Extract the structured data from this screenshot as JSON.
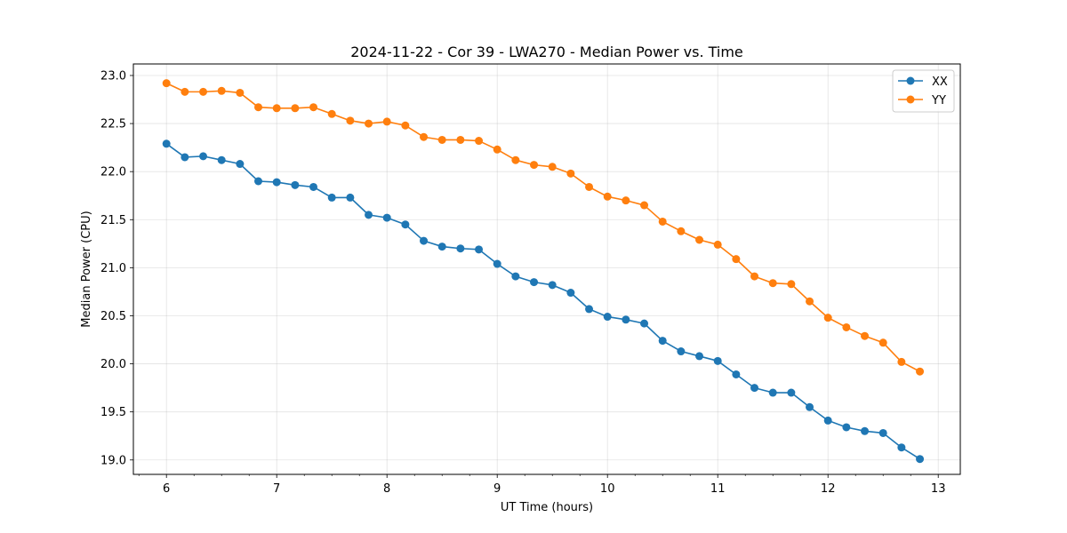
{
  "chart_data": {
    "type": "line",
    "title": "2024-11-22 - Cor 39 - LWA270 - Median Power vs. Time",
    "xlabel": "UT Time (hours)",
    "ylabel": "Median Power (CPU)",
    "xlim": [
      5.7,
      13.2
    ],
    "ylim": [
      18.85,
      23.12
    ],
    "grid": true,
    "legend_position": "top-right",
    "x_ticks": [
      6,
      7,
      8,
      9,
      10,
      11,
      12,
      13
    ],
    "x_tick_labels": [
      "6",
      "7",
      "8",
      "9",
      "10",
      "11",
      "12",
      "13"
    ],
    "x_minor_tick_step": 0.25,
    "y_ticks": [
      19.0,
      19.5,
      20.0,
      20.5,
      21.0,
      21.5,
      22.0,
      22.5,
      23.0
    ],
    "y_tick_labels": [
      "19.0",
      "19.5",
      "20.0",
      "20.5",
      "21.0",
      "21.5",
      "22.0",
      "22.5",
      "23.0"
    ],
    "x": [
      6.0,
      6.1667,
      6.3333,
      6.5,
      6.6667,
      6.8333,
      7.0,
      7.1667,
      7.3333,
      7.5,
      7.6667,
      7.8333,
      8.0,
      8.1667,
      8.3333,
      8.5,
      8.6667,
      8.8333,
      9.0,
      9.1667,
      9.3333,
      9.5,
      9.6667,
      9.8333,
      10.0,
      10.1667,
      10.3333,
      10.5,
      10.6667,
      10.8333,
      11.0,
      11.1667,
      11.3333,
      11.5,
      11.6667,
      11.8333,
      12.0,
      12.1667,
      12.3333,
      12.5,
      12.6667,
      12.8333
    ],
    "series": [
      {
        "name": "XX",
        "color": "#1f77b4",
        "values": [
          22.29,
          22.15,
          22.16,
          22.12,
          22.08,
          21.9,
          21.89,
          21.86,
          21.84,
          21.73,
          21.73,
          21.55,
          21.52,
          21.45,
          21.28,
          21.22,
          21.2,
          21.19,
          21.04,
          20.91,
          20.85,
          20.82,
          20.74,
          20.57,
          20.49,
          20.46,
          20.42,
          20.24,
          20.13,
          20.08,
          20.03,
          19.89,
          19.75,
          19.7,
          19.7,
          19.55,
          19.41,
          19.34,
          19.3,
          19.28,
          19.13,
          19.01
        ]
      },
      {
        "name": "YY",
        "color": "#ff7f0e",
        "values": [
          22.92,
          22.83,
          22.83,
          22.84,
          22.82,
          22.67,
          22.66,
          22.66,
          22.67,
          22.6,
          22.53,
          22.5,
          22.52,
          22.48,
          22.36,
          22.33,
          22.33,
          22.32,
          22.23,
          22.12,
          22.07,
          22.05,
          21.98,
          21.84,
          21.74,
          21.7,
          21.65,
          21.48,
          21.38,
          21.29,
          21.24,
          21.09,
          20.91,
          20.84,
          20.83,
          20.65,
          20.48,
          20.38,
          20.29,
          20.22,
          20.02,
          19.92
        ]
      }
    ]
  }
}
